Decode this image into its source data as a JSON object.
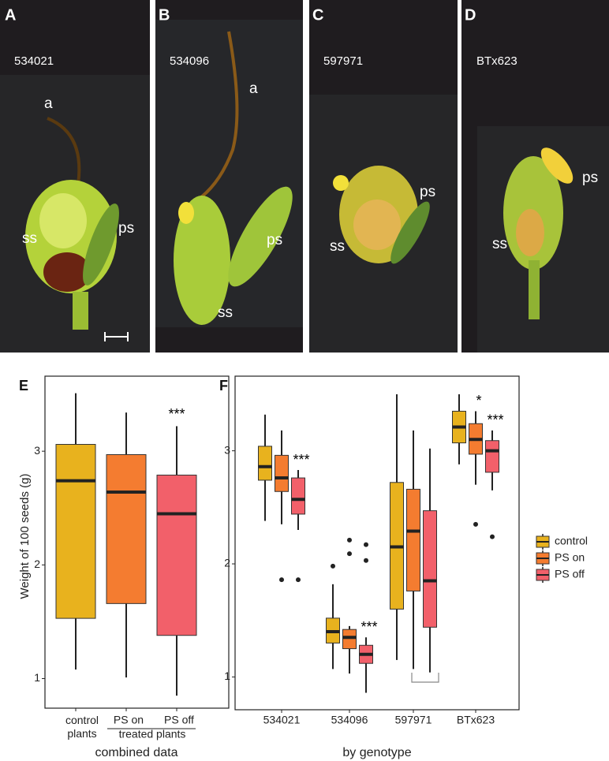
{
  "photo_panels": [
    {
      "letter": "A",
      "genotype": "534021",
      "labels": [
        "a",
        "ss",
        "ps"
      ]
    },
    {
      "letter": "B",
      "genotype": "534096",
      "labels": [
        "a",
        "ps",
        "ss"
      ]
    },
    {
      "letter": "C",
      "genotype": "597971",
      "labels": [
        "ps",
        "ss"
      ]
    },
    {
      "letter": "D",
      "genotype": "BTx623",
      "labels": [
        "ps",
        "ss"
      ]
    }
  ],
  "chart_data": [
    {
      "type": "box",
      "panel": "E",
      "y_label": "Weight of 100 seeds (g)",
      "categories": [
        "control\nplants",
        "PS on",
        "PS off"
      ],
      "colors": [
        "#e8b21e",
        "#f47c30",
        "#f2606a"
      ],
      "group_label": "treated plants",
      "x_label": "combined data",
      "boxes": [
        {
          "min": 1.08,
          "q1": 1.53,
          "median": 2.74,
          "q3": 3.06,
          "max": 3.51,
          "outliers": []
        },
        {
          "min": 1.01,
          "q1": 1.66,
          "median": 2.64,
          "q3": 2.97,
          "max": 3.34,
          "outliers": []
        },
        {
          "min": 0.85,
          "q1": 1.38,
          "median": 2.45,
          "q3": 2.79,
          "max": 3.22,
          "outliers": []
        }
      ],
      "significance": [
        null,
        null,
        "***"
      ],
      "ylim": [
        0.74,
        3.66
      ],
      "yticks": [
        1,
        2,
        3
      ]
    },
    {
      "type": "grouped-box",
      "panel": "F",
      "x_label": "by genotype",
      "categories": [
        "534021",
        "534096",
        "597971",
        "BTx623"
      ],
      "series": [
        {
          "name": "control",
          "color": "#e8b21e",
          "boxes": [
            {
              "min": 2.38,
              "q1": 2.74,
              "median": 2.86,
              "q3": 3.04,
              "max": 3.32,
              "outliers": []
            },
            {
              "min": 1.07,
              "q1": 1.3,
              "median": 1.4,
              "q3": 1.52,
              "max": 1.82,
              "outliers": [
                1.98
              ]
            },
            {
              "min": 1.15,
              "q1": 1.6,
              "median": 2.15,
              "q3": 2.72,
              "max": 3.5,
              "outliers": []
            },
            {
              "min": 2.88,
              "q1": 3.07,
              "median": 3.21,
              "q3": 3.35,
              "max": 3.5,
              "outliers": []
            }
          ],
          "significance": [
            null,
            null,
            null,
            null
          ]
        },
        {
          "name": "PS on",
          "color": "#f47c30",
          "boxes": [
            {
              "min": 2.35,
              "q1": 2.64,
              "median": 2.76,
              "q3": 2.96,
              "max": 3.18,
              "outliers": [
                1.86
              ]
            },
            {
              "min": 1.03,
              "q1": 1.25,
              "median": 1.35,
              "q3": 1.42,
              "max": 1.45,
              "outliers": [
                2.21,
                2.09
              ]
            },
            {
              "min": 1.07,
              "q1": 1.76,
              "median": 2.29,
              "q3": 2.66,
              "max": 3.18,
              "outliers": []
            },
            {
              "min": 2.7,
              "q1": 2.97,
              "median": 3.1,
              "q3": 3.24,
              "max": 3.35,
              "outliers": [
                2.35
              ]
            }
          ],
          "significance": [
            null,
            null,
            null,
            "*"
          ]
        },
        {
          "name": "PS off",
          "color": "#f2606a",
          "boxes": [
            {
              "min": 2.3,
              "q1": 2.44,
              "median": 2.57,
              "q3": 2.76,
              "max": 2.83,
              "outliers": [
                1.86
              ]
            },
            {
              "min": 0.86,
              "q1": 1.12,
              "median": 1.2,
              "q3": 1.28,
              "max": 1.35,
              "outliers": [
                2.17,
                2.03
              ]
            },
            {
              "min": 1.04,
              "q1": 1.44,
              "median": 1.85,
              "q3": 2.47,
              "max": 3.02,
              "outliers": []
            },
            {
              "min": 2.65,
              "q1": 2.81,
              "median": 3.0,
              "q3": 3.09,
              "max": 3.18,
              "outliers": [
                2.24
              ]
            }
          ],
          "significance": [
            "***",
            "***",
            null,
            "***"
          ]
        }
      ],
      "ylim": [
        0.71,
        3.66
      ],
      "yticks": [
        1,
        2,
        3
      ],
      "legend": "right"
    }
  ]
}
